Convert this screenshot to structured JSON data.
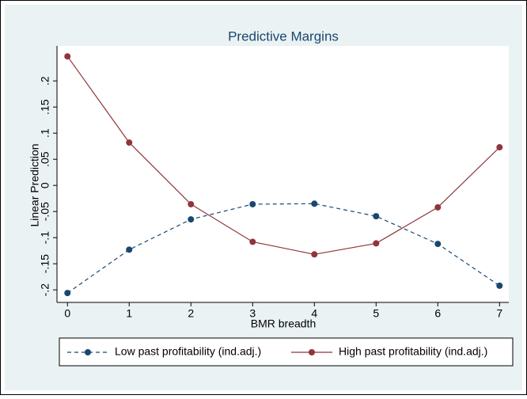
{
  "chart_data": {
    "type": "line",
    "title": "Predictive Margins",
    "x_label": "BMR breadth",
    "y_label": "Linear Prediction",
    "x": [
      0,
      1,
      2,
      3,
      4,
      5,
      6,
      7
    ],
    "xlim": [
      -0.17,
      7.15
    ],
    "xticks": [
      0,
      1,
      2,
      3,
      4,
      5,
      6,
      7
    ],
    "ylim": [
      -0.224,
      0.267
    ],
    "yticks": [
      {
        "value": -0.2,
        "label": "-.2"
      },
      {
        "value": -0.15,
        "label": "-.15"
      },
      {
        "value": -0.1,
        "label": "-.1"
      },
      {
        "value": -0.05,
        "label": "-.05"
      },
      0,
      {
        "value": 0.05,
        "label": ".05"
      },
      {
        "value": 0.1,
        "label": ".1"
      },
      {
        "value": 0.15,
        "label": ".15"
      },
      {
        "value": 0.2,
        "label": ".2"
      }
    ],
    "grid": false,
    "legend": "bottom",
    "series": [
      {
        "name": "Low past profitability (ind.adj.)",
        "color": "#1a476f",
        "dash": true,
        "values": [
          -0.206,
          -0.123,
          -0.065,
          -0.036,
          -0.035,
          -0.059,
          -0.112,
          -0.192
        ]
      },
      {
        "name": "High past profitability (ind.adj.)",
        "color": "#90353b",
        "dash": false,
        "values": [
          0.247,
          0.082,
          -0.036,
          -0.108,
          -0.132,
          -0.111,
          -0.042,
          0.073
        ]
      }
    ]
  }
}
